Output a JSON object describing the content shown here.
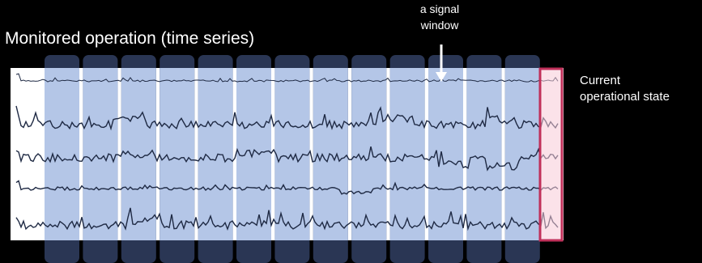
{
  "title": "Monitored operation (time series)",
  "annotation": {
    "line1": "a signal",
    "line2": "window"
  },
  "current_state": {
    "line1": "Current",
    "line2": "operational state"
  },
  "colors": {
    "background": "#000000",
    "panel": "#ffffff",
    "window_fill": "#b4c6e7",
    "window_tab": "#2a3654",
    "signal": "#1f2a44",
    "current_fill": "#f8cbd7",
    "current_border": "#c0305a",
    "text": "#ffffff"
  },
  "window_count": 13,
  "series": [
    {
      "id": "signal-1"
    },
    {
      "id": "signal-2"
    },
    {
      "id": "signal-3"
    },
    {
      "id": "signal-4"
    },
    {
      "id": "signal-5"
    }
  ]
}
